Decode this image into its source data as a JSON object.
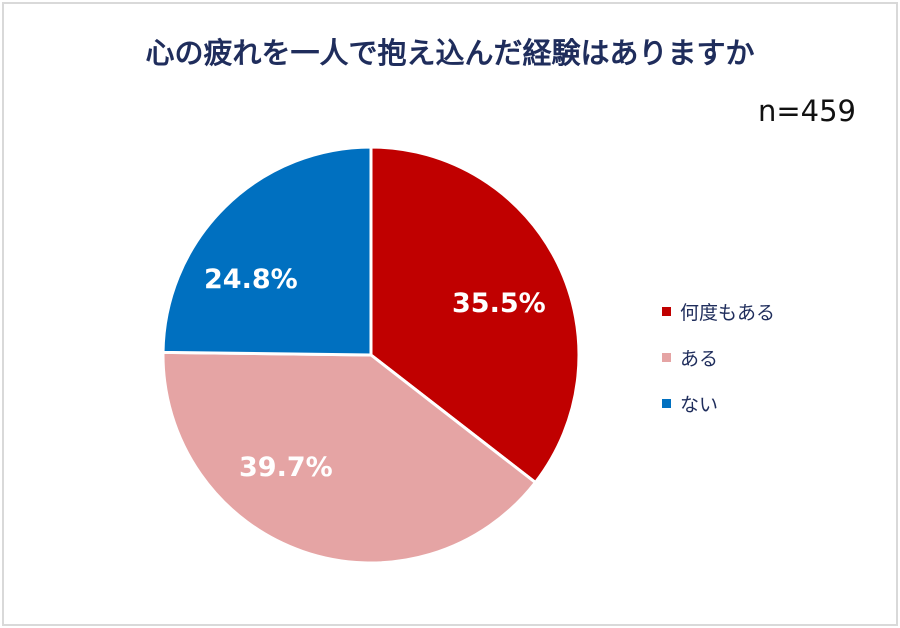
{
  "chart": {
    "title": "心の疲れを一人で抱え込んだ経験はありますか",
    "sample_size": "n=459"
  },
  "legend": [
    {
      "label": "何度もある",
      "color": "#c00000"
    },
    {
      "label": "ある",
      "color": "#e5a4a4"
    },
    {
      "label": "ない",
      "color": "#0070c0"
    }
  ],
  "labels": {
    "s0": "35.5%",
    "s1": "39.7%",
    "s2": "24.8%"
  },
  "chart_data": {
    "type": "pie",
    "title": "心の疲れを一人で抱え込んだ経験はありますか",
    "annotation": "n=459",
    "categories": [
      "何度もある",
      "ある",
      "ない"
    ],
    "values": [
      35.5,
      39.7,
      24.8
    ],
    "colors": [
      "#c00000",
      "#e5a4a4",
      "#0070c0"
    ],
    "start_angle": "12 o'clock, clockwise",
    "legend_position": "right"
  }
}
